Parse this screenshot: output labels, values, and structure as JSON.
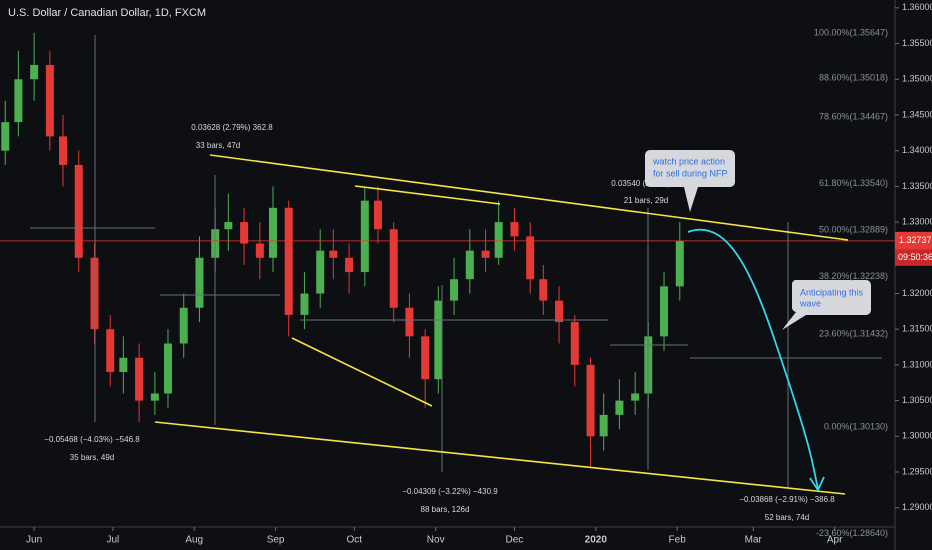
{
  "chart_data": {
    "type": "candlestick",
    "title": "U.S. Dollar / Canadian Dollar, 1D, FXCM",
    "x": [
      -11,
      -6,
      0,
      6,
      11,
      17,
      23,
      29,
      34,
      40,
      46,
      51,
      57,
      63,
      69,
      74,
      80,
      86,
      91,
      97,
      103,
      109,
      114,
      120,
      126,
      131,
      137,
      143,
      149,
      154,
      160,
      166,
      172,
      177,
      183,
      189,
      194,
      200,
      206,
      212,
      217,
      223,
      229,
      234,
      240,
      246
    ],
    "open": [
      1.34,
      1.344,
      1.35,
      1.352,
      1.342,
      1.338,
      1.325,
      1.315,
      1.309,
      1.311,
      1.305,
      1.306,
      1.313,
      1.318,
      1.325,
      1.329,
      1.33,
      1.327,
      1.325,
      1.332,
      1.317,
      1.32,
      1.326,
      1.325,
      1.323,
      1.333,
      1.329,
      1.318,
      1.314,
      1.308,
      1.319,
      1.322,
      1.326,
      1.325,
      1.33,
      1.328,
      1.322,
      1.319,
      1.316,
      1.31,
      1.3,
      1.303,
      1.305,
      1.306,
      1.314,
      1.321
    ],
    "high": [
      1.347,
      1.354,
      1.3565,
      1.354,
      1.345,
      1.34,
      1.327,
      1.317,
      1.314,
      1.313,
      1.309,
      1.315,
      1.32,
      1.328,
      1.332,
      1.334,
      1.332,
      1.33,
      1.335,
      1.333,
      1.323,
      1.329,
      1.329,
      1.327,
      1.335,
      1.335,
      1.33,
      1.32,
      1.315,
      1.321,
      1.325,
      1.329,
      1.329,
      1.333,
      1.332,
      1.33,
      1.324,
      1.321,
      1.317,
      1.311,
      1.306,
      1.308,
      1.309,
      1.316,
      1.323,
      1.33
    ],
    "low": [
      1.338,
      1.342,
      1.347,
      1.34,
      1.335,
      1.323,
      1.313,
      1.307,
      1.306,
      1.302,
      1.303,
      1.304,
      1.311,
      1.316,
      1.323,
      1.326,
      1.324,
      1.322,
      1.323,
      1.314,
      1.315,
      1.318,
      1.322,
      1.32,
      1.321,
      1.327,
      1.316,
      1.311,
      1.304,
      1.306,
      1.317,
      1.32,
      1.323,
      1.324,
      1.326,
      1.32,
      1.317,
      1.313,
      1.307,
      1.2955,
      1.298,
      1.301,
      1.303,
      1.304,
      1.312,
      1.319
    ],
    "close": [
      1.344,
      1.35,
      1.352,
      1.342,
      1.338,
      1.325,
      1.315,
      1.309,
      1.311,
      1.305,
      1.306,
      1.313,
      1.318,
      1.325,
      1.329,
      1.33,
      1.327,
      1.325,
      1.332,
      1.317,
      1.32,
      1.326,
      1.325,
      1.323,
      1.333,
      1.329,
      1.318,
      1.314,
      1.308,
      1.319,
      1.322,
      1.326,
      1.325,
      1.33,
      1.328,
      1.322,
      1.319,
      1.316,
      1.31,
      1.3,
      1.303,
      1.305,
      1.306,
      1.314,
      1.321,
      1.3274
    ],
    "up_color": "#4caf50",
    "down_color": "#e53935",
    "xlim": [
      -13,
      328
    ],
    "xticks": [
      {
        "value": 0,
        "label": "Jun"
      },
      {
        "value": 30,
        "label": "Jul"
      },
      {
        "value": 61,
        "label": "Aug"
      },
      {
        "value": 92,
        "label": "Sep"
      },
      {
        "value": 122,
        "label": "Oct"
      },
      {
        "value": 153,
        "label": "Nov"
      },
      {
        "value": 183,
        "label": "Dec"
      },
      {
        "value": 214,
        "label": "2020"
      },
      {
        "value": 245,
        "label": "Feb"
      },
      {
        "value": 274,
        "label": "Mar"
      },
      {
        "value": 305,
        "label": "Apr"
      }
    ],
    "ylim": [
      1.2873,
      1.3611
    ],
    "yticks": [
      {
        "value": 1.36,
        "label": "1.36000"
      },
      {
        "value": 1.355,
        "label": "1.35500"
      },
      {
        "value": 1.35,
        "label": "1.35000"
      },
      {
        "value": 1.345,
        "label": "1.34500"
      },
      {
        "value": 1.34,
        "label": "1.34000"
      },
      {
        "value": 1.335,
        "label": "1.33500"
      },
      {
        "value": 1.33,
        "label": "1.33000"
      },
      {
        "value": 1.325,
        "label": "1.32500"
      },
      {
        "value": 1.32,
        "label": "1.32000"
      },
      {
        "value": 1.315,
        "label": "1.31500"
      },
      {
        "value": 1.31,
        "label": "1.31000"
      },
      {
        "value": 1.305,
        "label": "1.30500"
      },
      {
        "value": 1.3,
        "label": "1.30000"
      },
      {
        "value": 1.295,
        "label": "1.29500"
      },
      {
        "value": 1.29,
        "label": "1.29000"
      }
    ],
    "fib_levels": [
      {
        "value": 1.35647,
        "label": "100.00%(1.35647)"
      },
      {
        "value": 1.35018,
        "label": "88.60%(1.35018)"
      },
      {
        "value": 1.34467,
        "label": "78.60%(1.34467)"
      },
      {
        "value": 1.3354,
        "label": "61.80%(1.33540)"
      },
      {
        "value": 1.32889,
        "label": "50.00%(1.32889)"
      },
      {
        "value": 1.32238,
        "label": "38.20%(1.32238)"
      },
      {
        "value": 1.31432,
        "label": "23.60%(1.31432)"
      },
      {
        "value": 1.3013,
        "label": "0.00%(1.30130)"
      },
      {
        "value": 1.2864,
        "label": "-23.60%(1.28640)"
      }
    ],
    "last_price": {
      "value": 1.32737,
      "label": "1.32737"
    },
    "countdown": "09:50:36",
    "annotations": [
      "0.03628 (2.79%) 362.8",
      "33 bars, 47d",
      "−0.05468 (−4.03%) −546.8",
      "35 bars, 49d",
      "−0.04309 (−3.22%) −430.9",
      "88 bars, 126d",
      "0.03540 (2.79%) 354.0",
      "21 bars, 29d",
      "−0.03868 (−2.91%) −386.8",
      "52 bars, 74d"
    ],
    "callouts": [
      [
        "watch price action",
        "for sell during NFP"
      ],
      [
        "Anticipating this",
        "wave"
      ]
    ]
  }
}
